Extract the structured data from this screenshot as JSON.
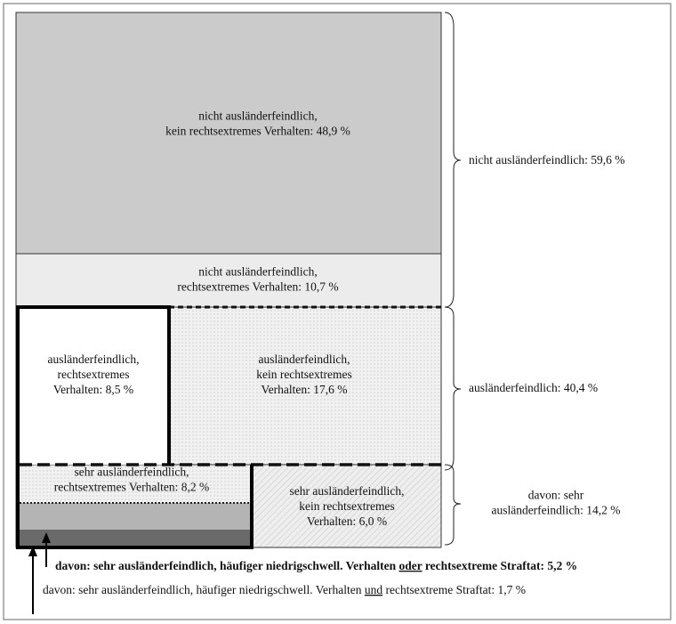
{
  "boxes": [
    {
      "lines": [
        "nicht ausländerfeindlich,",
        "kein rechtsextremes Verhalten: 48,9 %"
      ]
    },
    {
      "lines": [
        "nicht ausländerfeindlich,",
        "rechtsextremes Verhalten: 10,7 %"
      ]
    },
    {
      "lines": [
        "ausländerfeindlich,",
        "rechtsextremes",
        "Verhalten: 8,5 %"
      ]
    },
    {
      "lines": [
        "ausländerfeindlich,",
        "kein rechtsextremes",
        "Verhalten: 17,6 %"
      ]
    },
    {
      "lines": [
        "sehr ausländerfeindlich,",
        "rechtsextremes Verhalten: 8,2 %"
      ]
    },
    {
      "lines": [
        "sehr ausländerfeindlich,",
        "kein rechtsextremes",
        "Verhalten: 6,0 %"
      ]
    }
  ],
  "braces": [
    {
      "lines": [
        "nicht ausländerfeindlich: 59,6 %"
      ]
    },
    {
      "lines": [
        "ausländerfeindlich: 40,4 %"
      ]
    },
    {
      "lines": [
        "davon: sehr",
        "ausländerfeindlich: 14,2 %"
      ]
    }
  ],
  "notes": [
    {
      "parts": [
        "davon: sehr ausländerfeindlich, häufiger niedrigschwell. Verhalten ",
        "oder",
        " rechtsextreme Straftat: 5,2 %"
      ]
    },
    {
      "parts": [
        "davon: sehr ausländerfeindlich, häufiger niedrigschwell. Verhalten ",
        "und",
        " rechtsextreme Straftat: 1,7 %"
      ]
    }
  ]
}
